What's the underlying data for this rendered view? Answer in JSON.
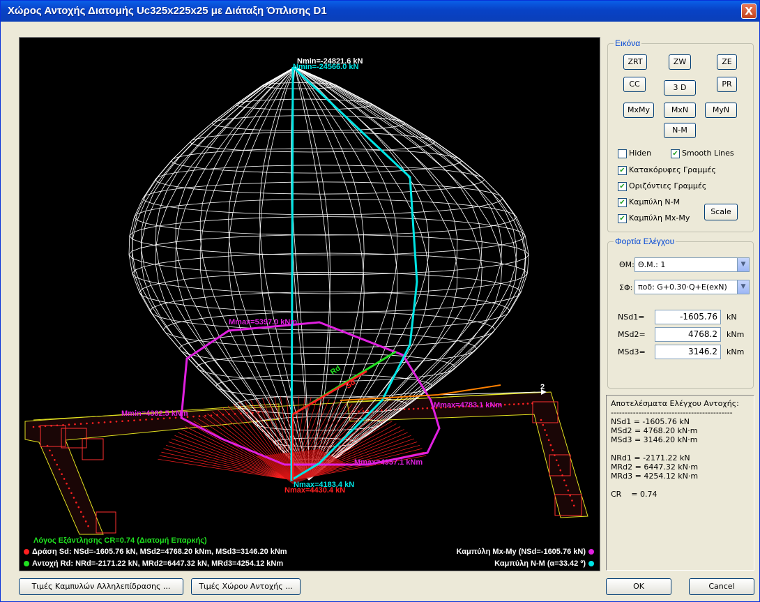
{
  "window": {
    "title": "Χώρος Αντοχής Διατομής Uc325x225x25 με Διάταξη Όπλισης D1",
    "close_label": "X"
  },
  "plot_labels": {
    "nmin_white": "Nmin=-24821.6 kN",
    "nmin_cyan": "Nmin=-24566.0 kN",
    "mmax_top": "Mmax=5397.0 kNm",
    "mmin_left": "Mmin=4382.5 kNm",
    "mmax_right": "Mmax=4783.1 kNm",
    "mmax_bottom": "Mmax=4957.1 kNm",
    "nmax_cyan": "Nmax=4183.4 kN",
    "nmax_red": "Nmax=4430.4 kN",
    "axis2": "2",
    "rd": "Rd",
    "sd": "Sd"
  },
  "footer": {
    "ratio_text": "Λόγος Εξάντλησης CR=0.74  (Διατομή Επαρκής)",
    "action_text": "Δράση  Sd: NSd=-1605.76 kN,  MSd2=4768.20 kNm,  MSd3=3146.20 kNm",
    "resistance_text": "Αντοχή Rd: NRd=-2171.22 kN,  MRd2=6447.32 kN,  MRd3=4254.12 kNm",
    "curve_mxmy_text": "Καμπύλη Mx-My (NSd=-1605.76 kN)",
    "curve_nm_text": "Καμπύλη N-M (α=33.42 º)"
  },
  "colors": {
    "mesh": "#ffffff",
    "nm_curve": "#00e5e5",
    "mxmy_curve": "#e020e0",
    "action": "#ff2020",
    "resistance": "#20e020",
    "ratio_text": "#20e020"
  },
  "image_panel": {
    "legend": "Εικόνα",
    "buttons": {
      "zrt": "ZRT",
      "zw": "ZW",
      "ze": "ZE",
      "cc": "CC",
      "three_d": "3 D",
      "pr": "PR",
      "mxmy": "MxMy",
      "mxn": "MxN",
      "myn": "MyN",
      "nm": "N-M",
      "scale": "Scale"
    },
    "checks": {
      "hiden": {
        "label": "Hiden",
        "checked": false
      },
      "smooth": {
        "label": "Smooth Lines",
        "checked": true
      },
      "vertical": {
        "label": "Κατακόρυφες Γραμμές",
        "checked": true
      },
      "horizontal": {
        "label": "Οριζόντιες Γραμμές",
        "checked": true
      },
      "curve_nm": {
        "label": "Καμπύλη N-M",
        "checked": true
      },
      "curve_mxmy": {
        "label": "Καμπύλη Mx-My",
        "checked": true
      }
    }
  },
  "loads_panel": {
    "legend": "Φορτία Ελέγχου",
    "theta_label": "ΘΜ:",
    "theta_value": "Θ.Μ.: 1",
    "sf_label": "ΣΦ:",
    "sf_value": "ποδ: G+0.30·Q+E(exN)",
    "nsd1_label": "NSd1=",
    "nsd1_value": "-1605.76",
    "nsd1_unit": "kN",
    "msd2_label": "MSd2=",
    "msd2_value": "4768.2",
    "msd2_unit": "kNm",
    "msd3_label": "MSd3=",
    "msd3_value": "3146.2",
    "msd3_unit": "kNm"
  },
  "results": {
    "title": "Αποτελέσματα Ελέγχου Αντοχής:",
    "separator": "--------------------------------------------",
    "nsd1": "NSd1 = -1605.76 kN",
    "msd2": "MSd2 = 4768.20 kN·m",
    "msd3": "MSd3 = 3146.20 kN·m",
    "nrd1": "NRd1 = -2171.22 kN",
    "mrd2": "MRd2 = 6447.32 kN·m",
    "mrd3": "MRd3 = 4254.12 kN·m",
    "cr": "CR    = 0.74"
  },
  "bottom_buttons": {
    "curves_values": "Τιμές Καμπυλών Αλληλεπίδρασης ...",
    "space_values": "Τιμές Χώρου Αντοχής ...",
    "ok": "OK",
    "cancel": "Cancel"
  }
}
